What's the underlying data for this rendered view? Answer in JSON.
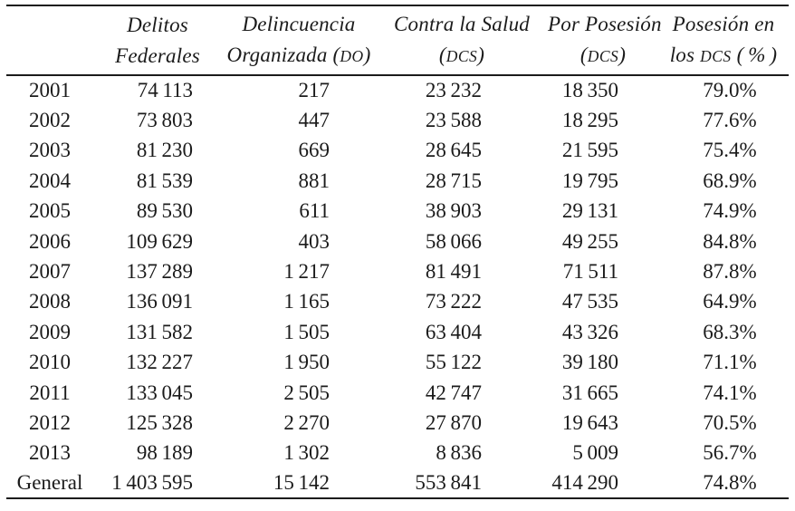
{
  "table": {
    "colors": {
      "text": "#1b1b1b",
      "rule": "#1b1b1b",
      "background": "#ffffff"
    },
    "columns": [
      {
        "line1": "",
        "line2": ""
      },
      {
        "line1": "Delitos",
        "line2": "Federales"
      },
      {
        "line1": "Delincuencia",
        "line2_pre": "Organizada (",
        "line2_sc": "DO",
        "line2_post": ")"
      },
      {
        "line1": "Contra la Salud",
        "line2_pre": "(",
        "line2_sc": "DCS",
        "line2_post": ")"
      },
      {
        "line1": "Por Posesión",
        "line2_pre": "(",
        "line2_sc": "DCS",
        "line2_post": ")"
      },
      {
        "line1": "Posesión en",
        "line2_pre": "los ",
        "line2_sc": "DCS",
        "line2_post": " ( % )"
      }
    ],
    "rows": [
      {
        "year": "2001",
        "delitos": "74 113",
        "do": "217",
        "dcs": "23 232",
        "posesion": "18 350",
        "pct": "79.0%"
      },
      {
        "year": "2002",
        "delitos": "73 803",
        "do": "447",
        "dcs": "23 588",
        "posesion": "18 295",
        "pct": "77.6%"
      },
      {
        "year": "2003",
        "delitos": "81 230",
        "do": "669",
        "dcs": "28 645",
        "posesion": "21 595",
        "pct": "75.4%"
      },
      {
        "year": "2004",
        "delitos": "81 539",
        "do": "881",
        "dcs": "28 715",
        "posesion": "19 795",
        "pct": "68.9%"
      },
      {
        "year": "2005",
        "delitos": "89 530",
        "do": "611",
        "dcs": "38 903",
        "posesion": "29 131",
        "pct": "74.9%"
      },
      {
        "year": "2006",
        "delitos": "109 629",
        "do": "403",
        "dcs": "58 066",
        "posesion": "49 255",
        "pct": "84.8%"
      },
      {
        "year": "2007",
        "delitos": "137 289",
        "do": "1 217",
        "dcs": "81 491",
        "posesion": "71 511",
        "pct": "87.8%"
      },
      {
        "year": "2008",
        "delitos": "136 091",
        "do": "1 165",
        "dcs": "73 222",
        "posesion": "47 535",
        "pct": "64.9%"
      },
      {
        "year": "2009",
        "delitos": "131 582",
        "do": "1 505",
        "dcs": "63 404",
        "posesion": "43 326",
        "pct": "68.3%"
      },
      {
        "year": "2010",
        "delitos": "132 227",
        "do": "1 950",
        "dcs": "55 122",
        "posesion": "39 180",
        "pct": "71.1%"
      },
      {
        "year": "2011",
        "delitos": "133 045",
        "do": "2 505",
        "dcs": "42 747",
        "posesion": "31 665",
        "pct": "74.1%"
      },
      {
        "year": "2012",
        "delitos": "125 328",
        "do": "2 270",
        "dcs": "27 870",
        "posesion": "19 643",
        "pct": "70.5%"
      },
      {
        "year": "2013",
        "delitos": "98 189",
        "do": "1 302",
        "dcs": "8 836",
        "posesion": "5 009",
        "pct": "56.7%"
      },
      {
        "year": "General",
        "delitos": "1 403 595",
        "do": "15 142",
        "dcs": "553 841",
        "posesion": "414 290",
        "pct": "74.8%"
      }
    ]
  }
}
